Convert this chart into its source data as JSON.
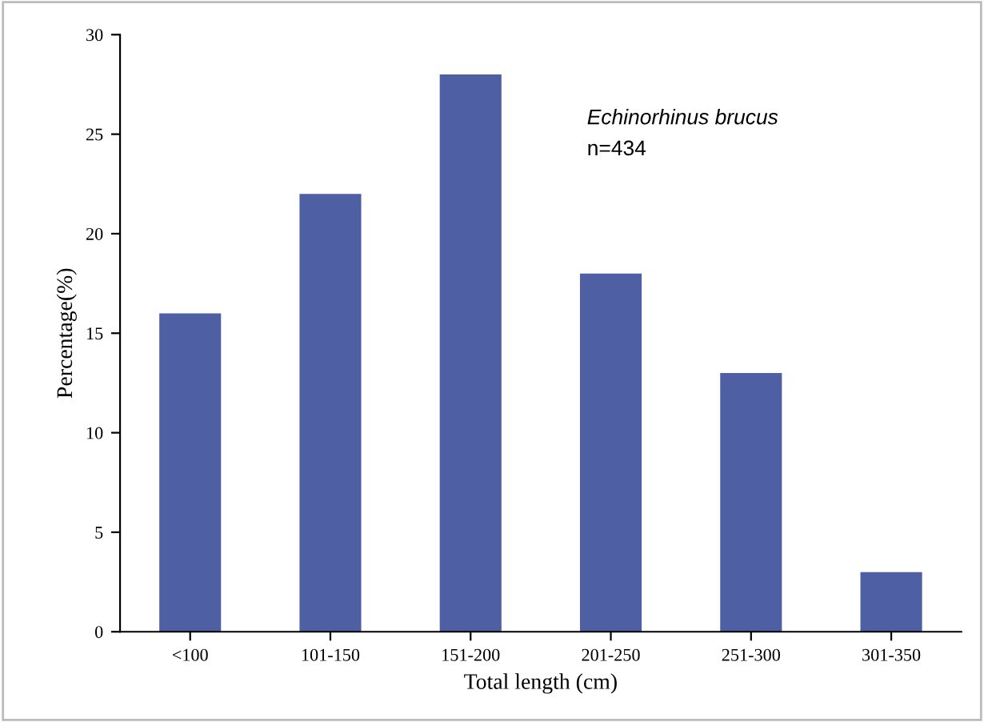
{
  "chart_data": {
    "type": "bar",
    "xlabel": "Total length (cm)",
    "ylabel": "Percentage(%)",
    "categories": [
      "<100",
      "101-150",
      "151-200",
      "201-250",
      "251-300",
      "301-350"
    ],
    "values": [
      16,
      22,
      28,
      18,
      13,
      3
    ],
    "color": "#4f5fa3",
    "ylim": [
      0,
      30
    ],
    "yticks": [
      0,
      5,
      10,
      15,
      20,
      25,
      30
    ],
    "grid": false,
    "annotations": [
      "Echinorhinus brucus",
      "n=434"
    ]
  }
}
